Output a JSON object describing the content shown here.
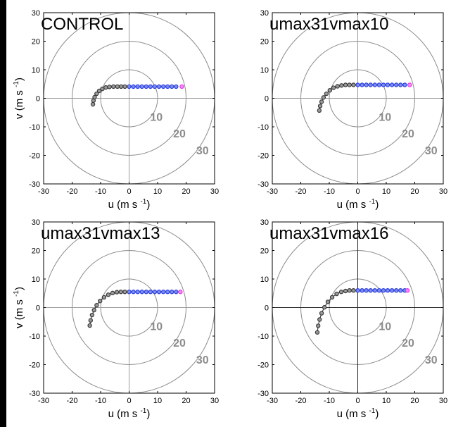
{
  "chart_data": [
    {
      "type": "scatter",
      "title": "CONTROL",
      "xlabel": "u (m s",
      "xlabel_sup": "-1",
      "xlabel_end": ")",
      "ylabel": "v (m s",
      "ylabel_sup": "-1",
      "ylabel_end": ")",
      "xlim": [
        -30,
        30
      ],
      "ylim": [
        -30,
        30
      ],
      "xticks": [
        "-30",
        "-20",
        "-10",
        "0",
        "10",
        "20",
        "30"
      ],
      "yticks": [
        "-30",
        "-20",
        "-10",
        "0",
        "10",
        "20",
        "30"
      ],
      "rings": [
        {
          "r": 10,
          "label": "10"
        },
        {
          "r": 20,
          "label": "20"
        },
        {
          "r": 30,
          "label": "30"
        }
      ],
      "grid": false,
      "series": [
        {
          "color": "#3a3a3a",
          "points": [
            [
              -12.7,
              -2.1
            ],
            [
              -12.5,
              -0.8
            ],
            [
              -12.1,
              0.4
            ],
            [
              -11.4,
              1.6
            ],
            [
              -10.5,
              2.6
            ],
            [
              -9.4,
              3.3
            ],
            [
              -8.2,
              3.8
            ],
            [
              -6.9,
              4.0
            ],
            [
              -5.5,
              4.1
            ],
            [
              -4.1,
              4.1
            ],
            [
              -2.8,
              4.1
            ],
            [
              -1.5,
              4.1
            ]
          ]
        },
        {
          "color": "#2b3fe0",
          "points": [
            [
              0,
              4.1
            ],
            [
              1.5,
              4.1
            ],
            [
              3.0,
              4.1
            ],
            [
              4.5,
              4.1
            ],
            [
              6.0,
              4.1
            ],
            [
              7.5,
              4.1
            ],
            [
              9.0,
              4.1
            ],
            [
              10.5,
              4.1
            ],
            [
              12.0,
              4.1
            ],
            [
              13.5,
              4.1
            ],
            [
              15.0,
              4.1
            ],
            [
              16.5,
              4.1
            ]
          ]
        },
        {
          "color": "#e23ae0",
          "points": [
            [
              18.5,
              4.1
            ]
          ]
        }
      ]
    },
    {
      "type": "scatter",
      "title": "umax31vmax10",
      "xlabel": "u (m s",
      "xlabel_sup": "-1",
      "xlabel_end": ")",
      "ylabel": "",
      "xlim": [
        -30,
        30
      ],
      "ylim": [
        -30,
        30
      ],
      "xticks": [
        "-30",
        "-20",
        "-10",
        "0",
        "10",
        "20",
        "30"
      ],
      "yticks": [
        "-30",
        "-20",
        "-10",
        "0",
        "10",
        "20",
        "30"
      ],
      "rings": [
        {
          "r": 10,
          "label": "10"
        },
        {
          "r": 20,
          "label": "20"
        },
        {
          "r": 30,
          "label": "30"
        }
      ],
      "grid": false,
      "series": [
        {
          "color": "#3a3a3a",
          "points": [
            [
              -13.5,
              -4.3
            ],
            [
              -13.2,
              -2.7
            ],
            [
              -12.7,
              -1.2
            ],
            [
              -12.0,
              0.3
            ],
            [
              -11.0,
              1.6
            ],
            [
              -9.8,
              2.8
            ],
            [
              -8.5,
              3.7
            ],
            [
              -7.1,
              4.2
            ],
            [
              -5.7,
              4.5
            ],
            [
              -4.3,
              4.7
            ],
            [
              -2.9,
              4.7
            ],
            [
              -1.5,
              4.7
            ]
          ]
        },
        {
          "color": "#2b3fe0",
          "points": [
            [
              0,
              4.7
            ],
            [
              1.5,
              4.7
            ],
            [
              3.0,
              4.7
            ],
            [
              4.5,
              4.7
            ],
            [
              6.0,
              4.7
            ],
            [
              7.5,
              4.7
            ],
            [
              9.0,
              4.7
            ],
            [
              10.5,
              4.7
            ],
            [
              12.0,
              4.7
            ],
            [
              13.5,
              4.7
            ],
            [
              15.0,
              4.7
            ],
            [
              16.5,
              4.7
            ]
          ]
        },
        {
          "color": "#e23ae0",
          "points": [
            [
              18.2,
              4.7
            ]
          ]
        }
      ]
    },
    {
      "type": "scatter",
      "title": "umax31vmax13",
      "xlabel": "u (m s",
      "xlabel_sup": "-1",
      "xlabel_end": ")",
      "ylabel": "v (m s",
      "ylabel_sup": "-1",
      "ylabel_end": ")",
      "xlim": [
        -30,
        30
      ],
      "ylim": [
        -30,
        30
      ],
      "xticks": [
        "-30",
        "-20",
        "-10",
        "0",
        "10",
        "20",
        "30"
      ],
      "yticks": [
        "-30",
        "-20",
        "-10",
        "0",
        "10",
        "20",
        "30"
      ],
      "rings": [
        {
          "r": 10,
          "label": "10"
        },
        {
          "r": 20,
          "label": "20"
        },
        {
          "r": 30,
          "label": "30"
        }
      ],
      "grid": false,
      "series": [
        {
          "color": "#3a3a3a",
          "points": [
            [
              -13.8,
              -6.3
            ],
            [
              -13.5,
              -4.5
            ],
            [
              -13.0,
              -2.6
            ],
            [
              -12.3,
              -0.9
            ],
            [
              -11.4,
              0.8
            ],
            [
              -10.2,
              2.3
            ],
            [
              -8.8,
              3.6
            ],
            [
              -7.3,
              4.5
            ],
            [
              -5.8,
              5.1
            ],
            [
              -4.3,
              5.4
            ],
            [
              -2.9,
              5.5
            ],
            [
              -1.5,
              5.5
            ]
          ]
        },
        {
          "color": "#2b3fe0",
          "points": [
            [
              0,
              5.5
            ],
            [
              1.5,
              5.5
            ],
            [
              3.0,
              5.5
            ],
            [
              4.5,
              5.5
            ],
            [
              6.0,
              5.5
            ],
            [
              7.5,
              5.5
            ],
            [
              9.0,
              5.5
            ],
            [
              10.5,
              5.5
            ],
            [
              12.0,
              5.5
            ],
            [
              13.5,
              5.5
            ],
            [
              15.0,
              5.5
            ],
            [
              16.5,
              5.5
            ]
          ]
        },
        {
          "color": "#e23ae0",
          "points": [
            [
              18.0,
              5.5
            ]
          ]
        }
      ]
    },
    {
      "type": "scatter",
      "title": "umax31vmax16",
      "xlabel": "u (m s",
      "xlabel_sup": "-1",
      "xlabel_end": ")",
      "ylabel": "",
      "xlim": [
        -30,
        30
      ],
      "ylim": [
        -30,
        30
      ],
      "xticks": [
        "-30",
        "-20",
        "-10",
        "0",
        "10",
        "20",
        "30"
      ],
      "yticks": [
        "-30",
        "-20",
        "-10",
        "0",
        "10",
        "20",
        "30"
      ],
      "rings": [
        {
          "r": 10,
          "label": "10"
        },
        {
          "r": 20,
          "label": "20"
        },
        {
          "r": 30,
          "label": "30"
        }
      ],
      "grid": false,
      "series": [
        {
          "color": "#3a3a3a",
          "points": [
            [
              -14.2,
              -8.7
            ],
            [
              -13.9,
              -6.4
            ],
            [
              -13.4,
              -4.2
            ],
            [
              -12.7,
              -2.0
            ],
            [
              -11.7,
              0.1
            ],
            [
              -10.5,
              2.0
            ],
            [
              -9.0,
              3.6
            ],
            [
              -7.4,
              4.8
            ],
            [
              -5.8,
              5.5
            ],
            [
              -4.3,
              5.8
            ],
            [
              -2.9,
              6.0
            ],
            [
              -1.5,
              6.0
            ]
          ]
        },
        {
          "color": "#2b3fe0",
          "points": [
            [
              0,
              6.0
            ],
            [
              1.5,
              6.0
            ],
            [
              3.0,
              6.0
            ],
            [
              4.5,
              6.0
            ],
            [
              6.0,
              6.0
            ],
            [
              7.5,
              6.0
            ],
            [
              9.0,
              6.0
            ],
            [
              10.5,
              6.0
            ],
            [
              12.0,
              6.0
            ],
            [
              13.5,
              6.0
            ],
            [
              15.0,
              6.0
            ],
            [
              16.5,
              6.0
            ]
          ]
        },
        {
          "color": "#e23ae0",
          "points": [
            [
              17.4,
              6.0
            ]
          ]
        }
      ]
    }
  ]
}
